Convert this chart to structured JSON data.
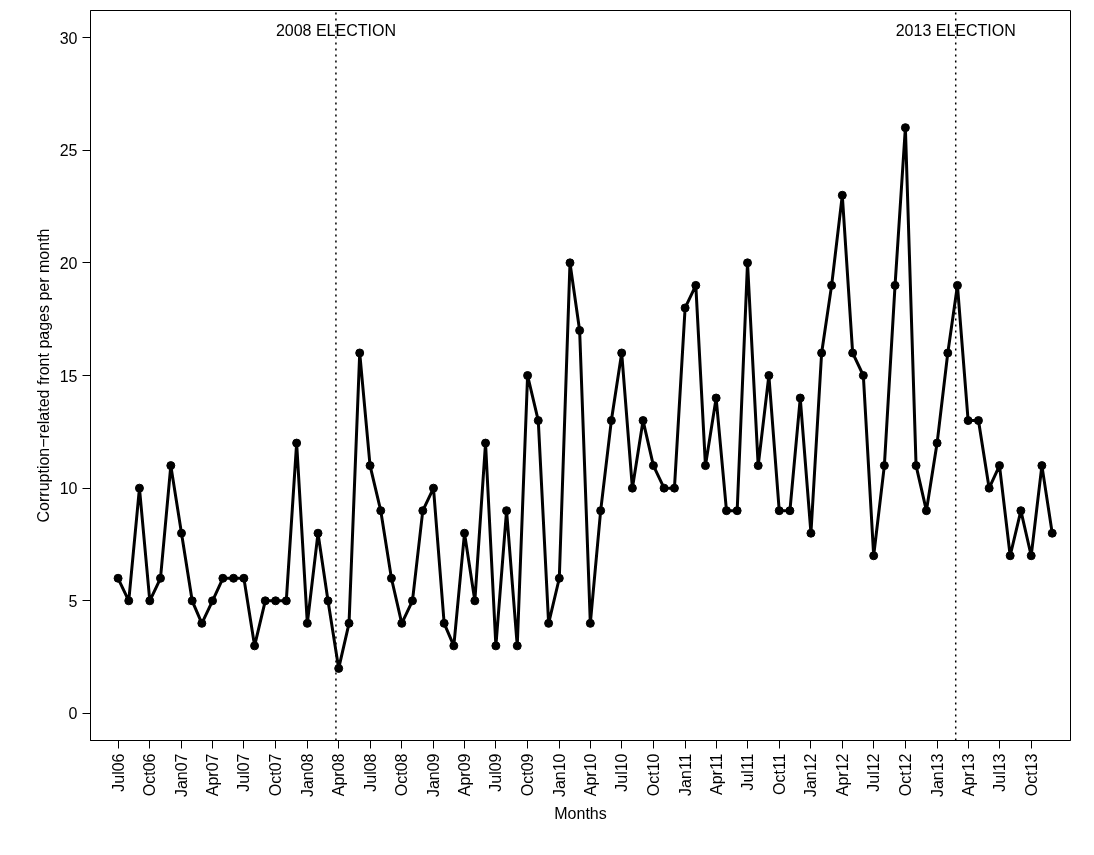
{
  "chart_data": {
    "type": "line",
    "xlabel": "Months",
    "ylabel": "Corruption−related front pages per month",
    "x": [
      "2006-07",
      "2006-08",
      "2006-09",
      "2006-10",
      "2006-11",
      "2006-12",
      "2007-01",
      "2007-02",
      "2007-03",
      "2007-04",
      "2007-05",
      "2007-06",
      "2007-07",
      "2007-08",
      "2007-09",
      "2007-10",
      "2007-11",
      "2007-12",
      "2008-01",
      "2008-02",
      "2008-03",
      "2008-04",
      "2008-05",
      "2008-06",
      "2008-07",
      "2008-08",
      "2008-09",
      "2008-10",
      "2008-11",
      "2008-12",
      "2009-01",
      "2009-02",
      "2009-03",
      "2009-04",
      "2009-05",
      "2009-06",
      "2009-07",
      "2009-08",
      "2009-09",
      "2009-10",
      "2009-11",
      "2009-12",
      "2010-01",
      "2010-02",
      "2010-03",
      "2010-04",
      "2010-05",
      "2010-06",
      "2010-07",
      "2010-08",
      "2010-09",
      "2010-10",
      "2010-11",
      "2010-12",
      "2011-01",
      "2011-02",
      "2011-03",
      "2011-04",
      "2011-05",
      "2011-06",
      "2011-07",
      "2011-08",
      "2011-09",
      "2011-10",
      "2011-11",
      "2011-12",
      "2012-01",
      "2012-02",
      "2012-03",
      "2012-04",
      "2012-05",
      "2012-06",
      "2012-07",
      "2012-08",
      "2012-09",
      "2012-10",
      "2012-11",
      "2012-12",
      "2013-01",
      "2013-02",
      "2013-03",
      "2013-04",
      "2013-05",
      "2013-06",
      "2013-07",
      "2013-08",
      "2013-09",
      "2013-10",
      "2013-11",
      "2013-12"
    ],
    "series": [
      {
        "color": "#000000",
        "values": [
          6,
          5,
          10,
          5,
          6,
          11,
          8,
          5,
          4,
          5,
          6,
          6,
          6,
          3,
          5,
          5,
          5,
          12,
          4,
          8,
          5,
          2,
          4,
          16,
          11,
          9,
          6,
          4,
          5,
          9,
          10,
          4,
          3,
          8,
          5,
          12,
          3,
          9,
          3,
          15,
          13,
          4,
          6,
          20,
          17,
          4,
          9,
          13,
          16,
          10,
          13,
          11,
          10,
          10,
          18,
          19,
          11,
          14,
          9,
          9,
          20,
          11,
          15,
          9,
          9,
          14,
          8,
          16,
          19,
          23,
          16,
          15,
          7,
          11,
          19,
          26,
          11,
          9,
          12,
          16,
          19,
          13,
          13,
          10,
          11,
          7,
          9,
          7,
          11,
          8
        ]
      }
    ],
    "marker": "circle",
    "line_style": "solid",
    "grid": false,
    "xlim": [
      "2006-04-12",
      "2014-01-23"
    ],
    "ylim": [
      -1.2,
      31.2
    ],
    "yticks": [
      0,
      5,
      10,
      15,
      20,
      25,
      30
    ],
    "xticks": [
      {
        "value": "2006-07",
        "label": "Jul06"
      },
      {
        "value": "2006-10",
        "label": "Oct06"
      },
      {
        "value": "2007-01",
        "label": "Jan07"
      },
      {
        "value": "2007-04",
        "label": "Apr07"
      },
      {
        "value": "2007-07",
        "label": "Jul07"
      },
      {
        "value": "2007-10",
        "label": "Oct07"
      },
      {
        "value": "2008-01",
        "label": "Jan08"
      },
      {
        "value": "2008-04",
        "label": "Apr08"
      },
      {
        "value": "2008-07",
        "label": "Jul08"
      },
      {
        "value": "2008-10",
        "label": "Oct08"
      },
      {
        "value": "2009-01",
        "label": "Jan09"
      },
      {
        "value": "2009-04",
        "label": "Apr09"
      },
      {
        "value": "2009-07",
        "label": "Jul09"
      },
      {
        "value": "2009-10",
        "label": "Oct09"
      },
      {
        "value": "2010-01",
        "label": "Jan10"
      },
      {
        "value": "2010-04",
        "label": "Apr10"
      },
      {
        "value": "2010-07",
        "label": "Jul10"
      },
      {
        "value": "2010-10",
        "label": "Oct10"
      },
      {
        "value": "2011-01",
        "label": "Jan11"
      },
      {
        "value": "2011-04",
        "label": "Apr11"
      },
      {
        "value": "2011-07",
        "label": "Jul11"
      },
      {
        "value": "2011-10",
        "label": "Oct11"
      },
      {
        "value": "2012-01",
        "label": "Jan12"
      },
      {
        "value": "2012-04",
        "label": "Apr12"
      },
      {
        "value": "2012-07",
        "label": "Jul12"
      },
      {
        "value": "2012-10",
        "label": "Oct12"
      },
      {
        "value": "2013-01",
        "label": "Jan13"
      },
      {
        "value": "2013-04",
        "label": "Apr13"
      },
      {
        "value": "2013-07",
        "label": "Jul13"
      },
      {
        "value": "2013-10",
        "label": "Oct13"
      }
    ],
    "ref_lines": [
      {
        "axis": "x",
        "value": "2008-03-24",
        "label": "2008 ELECTION",
        "color": "#000000",
        "line_style": "dotted"
      },
      {
        "axis": "x",
        "value": "2013-02-24",
        "label": "2013 ELECTION",
        "color": "#000000",
        "line_style": "dotted"
      }
    ]
  }
}
